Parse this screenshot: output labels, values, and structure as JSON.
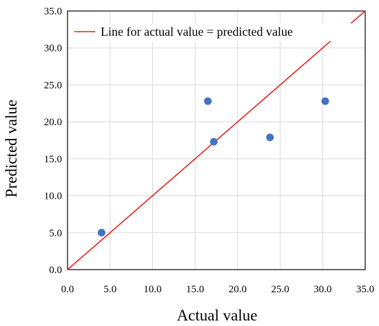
{
  "chart_data": {
    "type": "scatter",
    "xlabel": "Actual value",
    "ylabel": "Predicted value",
    "xlim": [
      0,
      35
    ],
    "ylim": [
      0,
      35
    ],
    "x_ticks": [
      "0.0",
      "5.0",
      "10.0",
      "15.0",
      "20.0",
      "25.0",
      "30.0",
      "35.0"
    ],
    "y_ticks": [
      "0.0",
      "5.0",
      "10.0",
      "15.0",
      "20.0",
      "25.0",
      "30.0",
      "35.0"
    ],
    "grid": true,
    "legend_position": "top-left",
    "series": [
      {
        "type": "scatter",
        "color": "#4472C4",
        "points": [
          {
            "x": 4.0,
            "y": 5.0
          },
          {
            "x": 16.5,
            "y": 22.8
          },
          {
            "x": 17.2,
            "y": 17.3
          },
          {
            "x": 23.8,
            "y": 17.9
          },
          {
            "x": 30.3,
            "y": 22.8
          }
        ]
      },
      {
        "type": "line",
        "name": "Line for actual value = predicted value",
        "color": "#E8201F",
        "points": [
          {
            "x": 0,
            "y": 0
          },
          {
            "x": 35,
            "y": 35
          }
        ]
      }
    ]
  }
}
